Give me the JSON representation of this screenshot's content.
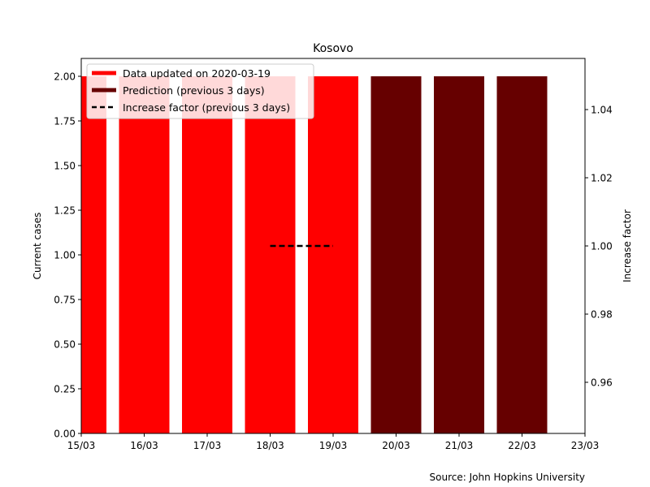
{
  "chart_data": {
    "type": "bar",
    "title": "Kosovo",
    "source_note": "Source: John Hopkins University",
    "xlabel": "",
    "ylabel": "Current cases",
    "y2label": "Increase factor",
    "x_ticks": [
      "15/03",
      "16/03",
      "17/03",
      "18/03",
      "19/03",
      "20/03",
      "21/03",
      "22/03",
      "23/03"
    ],
    "xlim": [
      "15/03",
      "23/03"
    ],
    "ylim": [
      0,
      2.1
    ],
    "y_ticks": [
      "0.00",
      "0.25",
      "0.50",
      "0.75",
      "1.00",
      "1.25",
      "1.50",
      "1.75",
      "2.00"
    ],
    "y2lim": [
      0.945,
      1.055
    ],
    "y2_ticks": [
      "0.96",
      "0.98",
      "1.00",
      "1.02",
      "1.04"
    ],
    "grid": false,
    "legend_position": "top-left",
    "series": [
      {
        "name": "Data updated on 2020-03-19",
        "kind": "bar",
        "color": "#ff0000",
        "x": [
          "15/03",
          "16/03",
          "17/03",
          "18/03",
          "19/03"
        ],
        "values": [
          2,
          2,
          2,
          2,
          2
        ]
      },
      {
        "name": "Prediction (previous 3 days)",
        "kind": "bar",
        "color": "#660000",
        "x": [
          "20/03",
          "21/03",
          "22/03"
        ],
        "values": [
          2,
          2,
          2
        ]
      },
      {
        "name": "Increase factor (previous 3 days)",
        "kind": "line",
        "axis": "right",
        "color": "#000000",
        "dash": "dashed",
        "x": [
          "18/03",
          "19/03"
        ],
        "values": [
          1.0,
          1.0
        ]
      }
    ]
  }
}
